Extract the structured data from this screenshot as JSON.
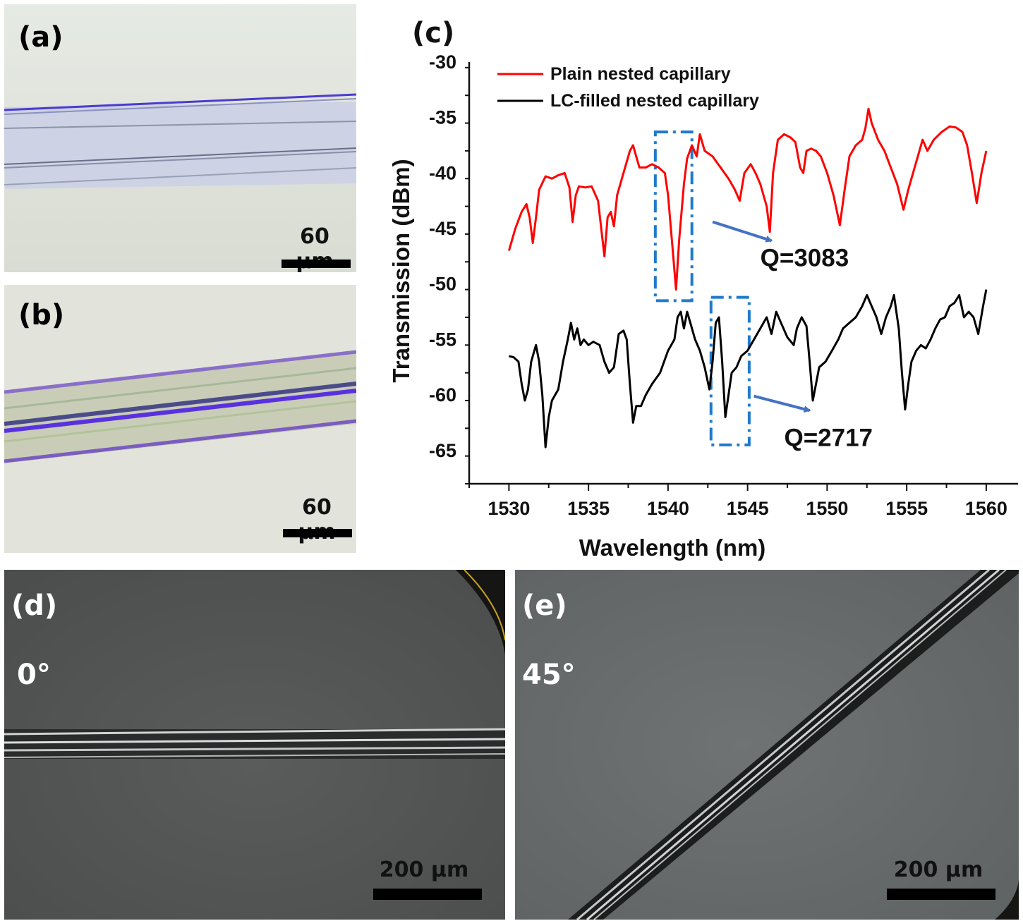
{
  "panels": {
    "a": {
      "label": "(a)",
      "scale": "60 μm"
    },
    "b": {
      "label": "(b)",
      "scale": "60 μm"
    },
    "d": {
      "label": "(d)",
      "angle": "0°",
      "scale": "200 μm"
    },
    "e": {
      "label": "(e)",
      "angle": "45°",
      "scale": "200 μm"
    }
  },
  "colors": {
    "plain_series": "#ff0000",
    "lc_series": "#000000",
    "highlight_box": "#1f7acc",
    "arrow": "#4472c4"
  },
  "chart_data": {
    "type": "line",
    "panel_label": "(c)",
    "xlabel": "Wavelength (nm)",
    "ylabel": "Transmission (dBm)",
    "xlim": [
      1527.5,
      1562
    ],
    "ylim": [
      -68,
      -30
    ],
    "xticks": [
      1530,
      1535,
      1540,
      1545,
      1550,
      1555,
      1560
    ],
    "yticks": [
      -30,
      -35,
      -40,
      -45,
      -50,
      -55,
      -60,
      -65
    ],
    "legend_position": "top-left",
    "series": [
      {
        "name": "Plain nested capillary",
        "color": "#ff0000",
        "points": [
          [
            1530,
            -47
          ],
          [
            1530.4,
            -45
          ],
          [
            1530.8,
            -43.5
          ],
          [
            1531.1,
            -42.8
          ],
          [
            1531.3,
            -44
          ],
          [
            1531.5,
            -46.3
          ],
          [
            1531.7,
            -44
          ],
          [
            1531.9,
            -41.5
          ],
          [
            1532.3,
            -40.3
          ],
          [
            1532.7,
            -40.5
          ],
          [
            1533.1,
            -40.2
          ],
          [
            1533.5,
            -40
          ],
          [
            1533.8,
            -41.3
          ],
          [
            1534,
            -44.4
          ],
          [
            1534.2,
            -42
          ],
          [
            1534.4,
            -41.2
          ],
          [
            1534.8,
            -41.3
          ],
          [
            1535.2,
            -41.2
          ],
          [
            1535.6,
            -42.5
          ],
          [
            1536.0,
            -47.5
          ],
          [
            1536.2,
            -44
          ],
          [
            1536.4,
            -43.5
          ],
          [
            1536.6,
            -44.8
          ],
          [
            1536.8,
            -42
          ],
          [
            1537.2,
            -40
          ],
          [
            1537.6,
            -38
          ],
          [
            1537.8,
            -37.5
          ],
          [
            1538.0,
            -38.5
          ],
          [
            1538.2,
            -39.5
          ],
          [
            1538.6,
            -39.5
          ],
          [
            1539.0,
            -39.2
          ],
          [
            1539.4,
            -39.5
          ],
          [
            1539.8,
            -40
          ],
          [
            1540.0,
            -42
          ],
          [
            1540.3,
            -47
          ],
          [
            1540.5,
            -50.5
          ],
          [
            1540.7,
            -46
          ],
          [
            1541.0,
            -41
          ],
          [
            1541.2,
            -38.7
          ],
          [
            1541.5,
            -37.5
          ],
          [
            1541.8,
            -38.5
          ],
          [
            1542.0,
            -36.5
          ],
          [
            1542.3,
            -38
          ],
          [
            1542.8,
            -38.5
          ],
          [
            1543.3,
            -39.5
          ],
          [
            1543.8,
            -40.5
          ],
          [
            1544.2,
            -41.5
          ],
          [
            1544.5,
            -42.5
          ],
          [
            1544.8,
            -40
          ],
          [
            1545.2,
            -39.2
          ],
          [
            1545.5,
            -40
          ],
          [
            1545.8,
            -41
          ],
          [
            1546.2,
            -43
          ],
          [
            1546.4,
            -45.3
          ],
          [
            1546.6,
            -40
          ],
          [
            1546.9,
            -37
          ],
          [
            1547.3,
            -36.5
          ],
          [
            1547.7,
            -36.8
          ],
          [
            1548.0,
            -37.2
          ],
          [
            1548.3,
            -39.5
          ],
          [
            1548.5,
            -40
          ],
          [
            1548.7,
            -38
          ],
          [
            1549.0,
            -37.8
          ],
          [
            1549.3,
            -38
          ],
          [
            1549.6,
            -38.5
          ],
          [
            1550.0,
            -40
          ],
          [
            1550.4,
            -42
          ],
          [
            1550.8,
            -44.7
          ],
          [
            1551.1,
            -41.5
          ],
          [
            1551.4,
            -38.5
          ],
          [
            1551.8,
            -37.5
          ],
          [
            1552.2,
            -37
          ],
          [
            1552.4,
            -36
          ],
          [
            1552.6,
            -34.2
          ],
          [
            1552.8,
            -35.5
          ],
          [
            1553.2,
            -37
          ],
          [
            1553.6,
            -38
          ],
          [
            1554.0,
            -39.5
          ],
          [
            1554.4,
            -41
          ],
          [
            1554.8,
            -43.3
          ],
          [
            1555.1,
            -41.5
          ],
          [
            1555.5,
            -39.5
          ],
          [
            1555.8,
            -38
          ],
          [
            1556.0,
            -37
          ],
          [
            1556.3,
            -38
          ],
          [
            1556.7,
            -37
          ],
          [
            1557.2,
            -36.3
          ],
          [
            1557.7,
            -35.8
          ],
          [
            1558.1,
            -35.9
          ],
          [
            1558.5,
            -36.3
          ],
          [
            1558.8,
            -37.5
          ],
          [
            1559.1,
            -40
          ],
          [
            1559.4,
            -42.7
          ],
          [
            1559.7,
            -40
          ],
          [
            1560.0,
            -38
          ]
        ]
      },
      {
        "name": "LC-filled nested capillary",
        "color": "#000000",
        "points": [
          [
            1530,
            -56.5
          ],
          [
            1530.3,
            -56.6
          ],
          [
            1530.6,
            -57
          ],
          [
            1530.8,
            -59
          ],
          [
            1531.0,
            -60.5
          ],
          [
            1531.2,
            -59.5
          ],
          [
            1531.4,
            -57
          ],
          [
            1531.7,
            -55.5
          ],
          [
            1531.9,
            -57
          ],
          [
            1532.1,
            -60
          ],
          [
            1532.3,
            -64.7
          ],
          [
            1532.5,
            -62
          ],
          [
            1532.7,
            -60.5
          ],
          [
            1532.9,
            -60
          ],
          [
            1533.1,
            -59.5
          ],
          [
            1533.4,
            -57
          ],
          [
            1533.7,
            -55
          ],
          [
            1533.9,
            -53.5
          ],
          [
            1534.1,
            -55
          ],
          [
            1534.3,
            -54
          ],
          [
            1534.5,
            -55.5
          ],
          [
            1534.7,
            -55
          ],
          [
            1535.0,
            -55.5
          ],
          [
            1535.3,
            -55.2
          ],
          [
            1535.7,
            -55.5
          ],
          [
            1536.0,
            -57
          ],
          [
            1536.3,
            -58
          ],
          [
            1536.6,
            -57.5
          ],
          [
            1536.9,
            -54.5
          ],
          [
            1537.2,
            -54.2
          ],
          [
            1537.4,
            -55
          ],
          [
            1537.6,
            -59
          ],
          [
            1537.8,
            -62.5
          ],
          [
            1538.0,
            -61
          ],
          [
            1538.3,
            -61
          ],
          [
            1538.6,
            -60
          ],
          [
            1539.0,
            -59
          ],
          [
            1539.5,
            -58
          ],
          [
            1540.0,
            -56
          ],
          [
            1540.4,
            -55
          ],
          [
            1540.6,
            -53
          ],
          [
            1540.8,
            -52.5
          ],
          [
            1541.0,
            -54
          ],
          [
            1541.2,
            -52.5
          ],
          [
            1541.4,
            -53.5
          ],
          [
            1541.7,
            -55
          ],
          [
            1542.0,
            -56
          ],
          [
            1542.3,
            -57.5
          ],
          [
            1542.6,
            -59.5
          ],
          [
            1542.8,
            -57
          ],
          [
            1543.0,
            -53.5
          ],
          [
            1543.2,
            -53
          ],
          [
            1543.4,
            -57
          ],
          [
            1543.6,
            -62
          ],
          [
            1543.8,
            -60
          ],
          [
            1544.0,
            -58
          ],
          [
            1544.3,
            -57.5
          ],
          [
            1544.6,
            -56.5
          ],
          [
            1545.0,
            -56
          ],
          [
            1545.4,
            -55
          ],
          [
            1545.8,
            -54
          ],
          [
            1546.2,
            -53
          ],
          [
            1546.5,
            -54.5
          ],
          [
            1546.8,
            -52.5
          ],
          [
            1547.1,
            -53.5
          ],
          [
            1547.5,
            -54.8
          ],
          [
            1547.9,
            -55.5
          ],
          [
            1548.1,
            -54
          ],
          [
            1548.4,
            -53
          ],
          [
            1548.7,
            -53.8
          ],
          [
            1548.9,
            -57
          ],
          [
            1549.1,
            -60.5
          ],
          [
            1549.3,
            -59
          ],
          [
            1549.5,
            -57.5
          ],
          [
            1549.9,
            -57
          ],
          [
            1550.3,
            -56
          ],
          [
            1550.7,
            -55
          ],
          [
            1551.0,
            -54
          ],
          [
            1551.4,
            -53.5
          ],
          [
            1551.8,
            -53
          ],
          [
            1552.2,
            -52
          ],
          [
            1552.5,
            -51
          ],
          [
            1552.8,
            -52
          ],
          [
            1553.1,
            -53
          ],
          [
            1553.4,
            -54.5
          ],
          [
            1553.7,
            -53
          ],
          [
            1554.0,
            -52
          ],
          [
            1554.2,
            -51
          ],
          [
            1554.5,
            -54
          ],
          [
            1554.7,
            -58
          ],
          [
            1554.9,
            -61.3
          ],
          [
            1555.1,
            -59
          ],
          [
            1555.3,
            -57
          ],
          [
            1555.6,
            -56
          ],
          [
            1555.9,
            -55.5
          ],
          [
            1556.2,
            -55.8
          ],
          [
            1556.5,
            -55
          ],
          [
            1556.8,
            -54
          ],
          [
            1557.1,
            -53.2
          ],
          [
            1557.4,
            -53
          ],
          [
            1557.7,
            -52
          ],
          [
            1558.0,
            -51.7
          ],
          [
            1558.3,
            -51
          ],
          [
            1558.6,
            -53
          ],
          [
            1558.9,
            -52.5
          ],
          [
            1559.2,
            -53
          ],
          [
            1559.5,
            -54.5
          ],
          [
            1559.8,
            -52
          ],
          [
            1560.0,
            -50.5
          ]
        ]
      }
    ],
    "highlight_boxes": [
      {
        "x0": 1539.2,
        "x1": 1541.5,
        "y0": -51.5,
        "y1": -36.3
      },
      {
        "x0": 1542.7,
        "x1": 1545.1,
        "y0": -64.5,
        "y1": -51.2
      }
    ],
    "annotations": [
      {
        "text": "Q=3083",
        "x": 1545.8,
        "y": -48.4,
        "arrow_from": [
          1542.8,
          -44.4
        ],
        "arrow_to": [
          1546.5,
          -46.1
        ]
      },
      {
        "text": "Q=2717",
        "x": 1547.3,
        "y": -64.6,
        "arrow_from": [
          1545.4,
          -60.1
        ],
        "arrow_to": [
          1548.9,
          -61.4
        ]
      }
    ]
  }
}
